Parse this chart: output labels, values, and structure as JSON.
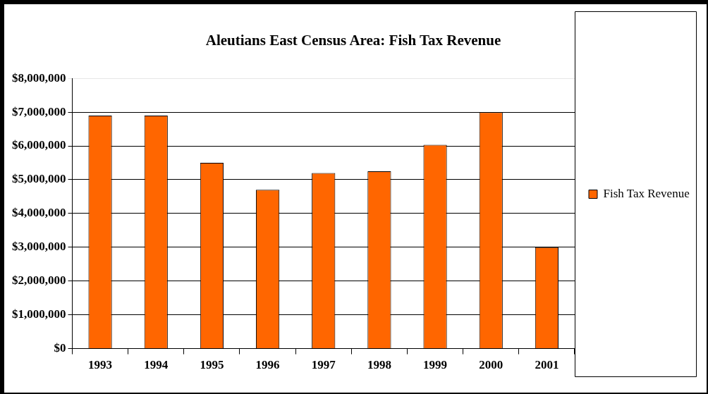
{
  "chart_data": {
    "type": "bar",
    "title": "Aleutians East Census Area: Fish Tax Revenue",
    "categories": [
      "1993",
      "1994",
      "1995",
      "1996",
      "1997",
      "1998",
      "1999",
      "2000",
      "2001"
    ],
    "series": [
      {
        "name": "Fish Tax Revenue",
        "color": "#ff6600",
        "values": [
          6900000,
          6900000,
          5500000,
          4700000,
          5200000,
          5250000,
          6030000,
          7000000,
          3000000
        ]
      }
    ],
    "ylim": [
      0,
      8000000
    ],
    "yticks": [
      {
        "value": 0,
        "label": "$0"
      },
      {
        "value": 1000000,
        "label": "$1,000,000"
      },
      {
        "value": 2000000,
        "label": "$2,000,000"
      },
      {
        "value": 3000000,
        "label": "$3,000,000"
      },
      {
        "value": 4000000,
        "label": "$4,000,000"
      },
      {
        "value": 5000000,
        "label": "$5,000,000"
      },
      {
        "value": 6000000,
        "label": "$6,000,000"
      },
      {
        "value": 7000000,
        "label": "$7,000,000"
      },
      {
        "value": 8000000,
        "label": "$8,000,000"
      }
    ],
    "grid": "y",
    "legend": "right"
  }
}
